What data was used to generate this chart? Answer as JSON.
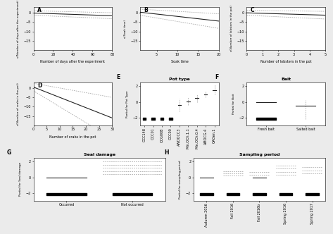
{
  "background": "#ebebeb",
  "panel_bg": "#ffffff",
  "panels": {
    "A": {
      "label": "A",
      "xlabel": "Number of days after the experiment",
      "ylabel": "s(Number of days after the experiment)",
      "xlim": [
        0,
        80
      ],
      "ylim": [
        -20,
        3
      ],
      "yticks": [
        0,
        -5,
        -10,
        -15
      ],
      "xticks": [
        0,
        20,
        40,
        60,
        80
      ],
      "y_mid": [
        -0.3,
        -0.5,
        -0.7,
        -0.9,
        -1.1,
        -1.3,
        -1.5,
        -1.7,
        -1.9,
        -2.1
      ],
      "spread_lo": 1.5,
      "spread_hi": 1.5
    },
    "B": {
      "label": "B",
      "xlabel": "Soak time",
      "ylabel": "s(Soak time)",
      "xlim": [
        1,
        20
      ],
      "ylim": [
        -20,
        3
      ],
      "yticks": [
        0,
        -5,
        -10,
        -15
      ],
      "xticks": [
        5,
        10,
        15,
        20
      ]
    },
    "C": {
      "label": "C",
      "xlabel": "Number of lobsters in the pot",
      "ylabel": "s(Number of lobsters in the pot)",
      "xlim": [
        0,
        5
      ],
      "ylim": [
        -20,
        3
      ],
      "yticks": [
        0,
        -5,
        -10,
        -15
      ],
      "xticks": [
        0,
        1,
        2,
        3,
        4,
        5
      ]
    },
    "D": {
      "label": "D",
      "xlabel": "Number of crabs in the pot",
      "ylabel": "s(Number of crabs in the pot)",
      "xlim": [
        0,
        30
      ],
      "ylim": [
        -20,
        3
      ],
      "yticks": [
        0,
        -5,
        -10,
        -15
      ],
      "xticks": [
        0,
        5,
        10,
        15,
        20,
        25,
        30
      ]
    },
    "E": {
      "label": "E",
      "title": "Pot type",
      "ylabel": "Partial for Pot Type",
      "categories": [
        "OCC148",
        "OCC01",
        "OCG00B",
        "OCC00",
        "AWDOCC3",
        "Min.OCh.1.1",
        "Min.OCh.0.4",
        "AMOCG.4",
        "OAOen.1"
      ],
      "means": [
        -2.2,
        -2.2,
        -2.2,
        -2.2,
        -0.5,
        0.0,
        0.5,
        1.0,
        1.5
      ],
      "lo": [
        -2.3,
        -2.3,
        -2.3,
        -2.3,
        -1.5,
        -0.5,
        0.0,
        0.5,
        1.0
      ],
      "hi": [
        -2.1,
        -2.1,
        -2.1,
        -2.1,
        0.5,
        0.5,
        1.0,
        1.5,
        2.5
      ],
      "ylim": [
        -3.0,
        2.5
      ],
      "yticks": [
        -2,
        0,
        2
      ]
    },
    "F": {
      "label": "F",
      "title": "Bait",
      "ylabel": "Partial for Bait",
      "categories": [
        "Fresh bait",
        "Salted bait"
      ],
      "means": [
        -2.2,
        -0.5
      ],
      "lo": [
        -2.3,
        -2.2
      ],
      "hi": [
        -2.1,
        0.5
      ],
      "ylim": [
        -3.0,
        2.5
      ],
      "yticks": [
        -2,
        0,
        2
      ]
    },
    "G": {
      "label": "G",
      "title": "Seal damage",
      "ylabel": "Partial for Seal damage",
      "categories": [
        "Occurred",
        "Not occurred"
      ],
      "means": [
        -2.2,
        -2.2
      ],
      "lo_solid": [
        -2.3,
        -2.3
      ],
      "hi_solid": [
        -2.1,
        -2.1
      ],
      "means_dash": [
        null,
        0.3
      ],
      "lo_dash": [
        null,
        0.1
      ],
      "hi_dash": [
        null,
        2.0
      ],
      "mean_line": [
        0.0,
        null
      ],
      "ylim": [
        -3.0,
        2.5
      ],
      "yticks": [
        -2,
        0,
        2
      ]
    },
    "H": {
      "label": "H",
      "title": "Sampling period",
      "ylabel": "Partial for sampling period",
      "categories": [
        "Autumn 2016",
        "Fall 2016",
        "Fall 2016b",
        "Spring 2016",
        "Spring 2017"
      ],
      "means": [
        -2.2,
        -2.2,
        -2.2,
        -2.2,
        -2.2
      ],
      "lo": [
        -2.3,
        -2.3,
        -2.3,
        -2.3,
        -2.3
      ],
      "hi": [
        -2.1,
        -2.1,
        -2.1,
        -2.1,
        -2.1
      ],
      "ylim": [
        -3.0,
        2.5
      ],
      "yticks": [
        -2,
        0,
        2
      ]
    }
  },
  "lc": "#222222",
  "cc": "#aaaaaa",
  "lw": 0.8,
  "cw": 0.6
}
